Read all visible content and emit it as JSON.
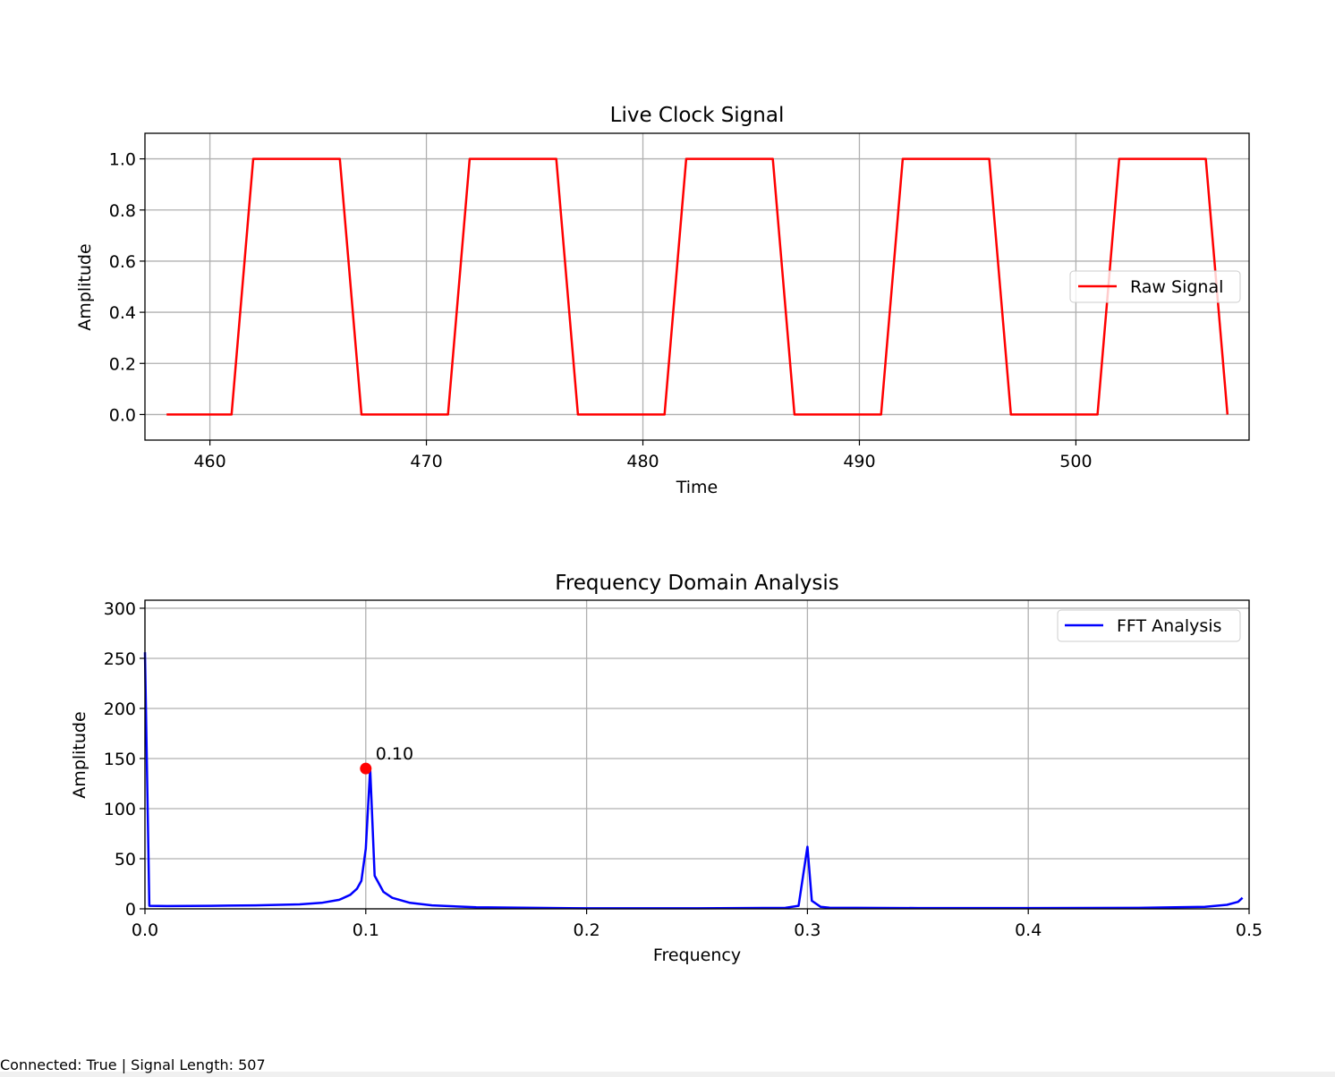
{
  "status": {
    "text": "Connected: True | Signal Length: 507"
  },
  "chart_data": [
    {
      "type": "line",
      "title": "Live Clock Signal",
      "xlabel": "Time",
      "ylabel": "Amplitude",
      "xlim": [
        457,
        508
      ],
      "ylim": [
        -0.1,
        1.1
      ],
      "xticks": [
        460,
        470,
        480,
        490,
        500
      ],
      "yticks": [
        0.0,
        0.2,
        0.4,
        0.6,
        0.8,
        1.0
      ],
      "xtick_labels": [
        "460",
        "470",
        "480",
        "490",
        "500"
      ],
      "ytick_labels": [
        "0.0",
        "0.2",
        "0.4",
        "0.6",
        "0.8",
        "1.0"
      ],
      "grid": true,
      "legend_position": "center-right",
      "series": [
        {
          "name": "Raw Signal",
          "color": "#ff0000",
          "x": [
            458,
            461,
            462,
            466,
            467,
            471,
            472,
            476,
            477,
            481,
            482,
            486,
            487,
            491,
            492,
            496,
            497,
            501,
            502,
            506,
            507
          ],
          "y": [
            0,
            0,
            1,
            1,
            0,
            0,
            1,
            1,
            0,
            0,
            1,
            1,
            0,
            0,
            1,
            1,
            0,
            0,
            1,
            1,
            0
          ]
        }
      ]
    },
    {
      "type": "line",
      "title": "Frequency Domain Analysis",
      "xlabel": "Frequency",
      "ylabel": "Amplitude",
      "xlim": [
        0,
        0.5
      ],
      "ylim": [
        0,
        308
      ],
      "xticks": [
        0.0,
        0.1,
        0.2,
        0.3,
        0.4,
        0.5
      ],
      "yticks": [
        0,
        50,
        100,
        150,
        200,
        250,
        300
      ],
      "xtick_labels": [
        "0.0",
        "0.1",
        "0.2",
        "0.3",
        "0.4",
        "0.5"
      ],
      "ytick_labels": [
        "0",
        "50",
        "100",
        "150",
        "200",
        "250",
        "300"
      ],
      "grid": true,
      "legend_position": "top-right",
      "series": [
        {
          "name": "FFT Analysis",
          "color": "#0000ff",
          "x": [
            0,
            0.002,
            0.01,
            0.03,
            0.05,
            0.07,
            0.08,
            0.088,
            0.093,
            0.096,
            0.098,
            0.1,
            0.102,
            0.104,
            0.108,
            0.112,
            0.12,
            0.13,
            0.15,
            0.2,
            0.25,
            0.29,
            0.296,
            0.3,
            0.302,
            0.306,
            0.31,
            0.35,
            0.4,
            0.45,
            0.48,
            0.49,
            0.495,
            0.497
          ],
          "y": [
            256,
            3,
            2.8,
            3,
            3.5,
            4.5,
            6,
            9,
            14,
            20,
            28,
            60,
            140,
            33,
            17,
            11,
            6,
            3.5,
            1.5,
            0.5,
            0.5,
            1,
            3,
            62,
            8,
            2,
            1.2,
            0.8,
            0.8,
            1,
            2,
            4,
            7,
            11
          ]
        }
      ],
      "annotations": [
        {
          "x": 0.1,
          "y": 140,
          "label": "0.10",
          "marker_color": "#ff0000"
        }
      ]
    }
  ]
}
